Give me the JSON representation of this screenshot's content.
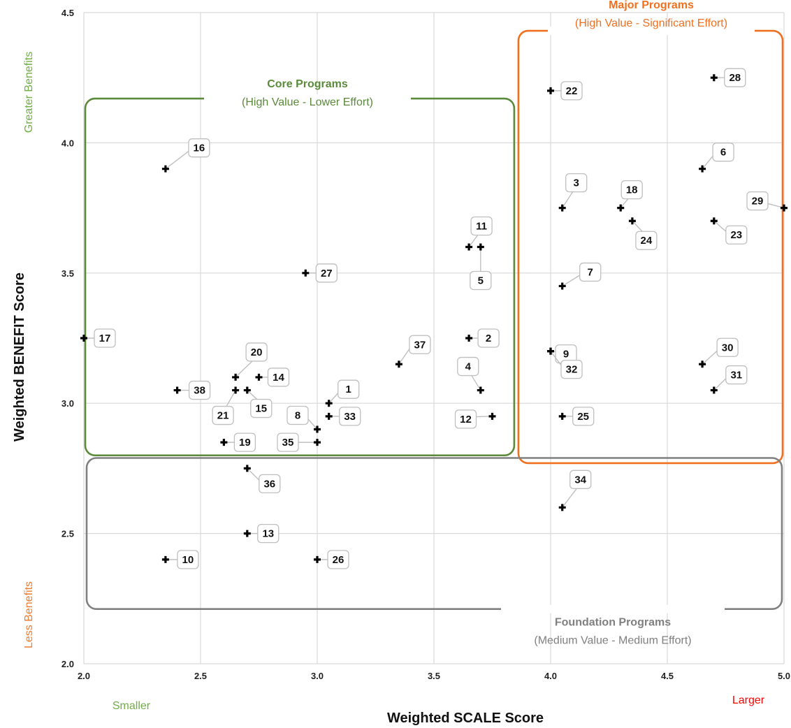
{
  "chart_data": {
    "type": "scatter",
    "xlabel": "Weighted SCALE Score",
    "ylabel": "Weighted BENEFIT Score",
    "xlim": [
      2.0,
      5.0
    ],
    "ylim": [
      2.0,
      4.5
    ],
    "x_ticks": [
      "2.0",
      "2.5",
      "3.0",
      "3.5",
      "4.0",
      "4.5",
      "5.0"
    ],
    "y_ticks": [
      "2.0",
      "2.5",
      "3.0",
      "3.5",
      "4.0",
      "4.5"
    ],
    "grid": true,
    "x_low_label": "Smaller",
    "x_high_label": "Larger",
    "y_high_label": "Greater Benefits",
    "y_low_label": "Less Benefits",
    "colors": {
      "core": "#5a8a3a",
      "major": "#f07020",
      "foundation": "#808080",
      "smaller": "#70ad47",
      "larger": "#ff0000",
      "greater": "#70ad47",
      "less": "#ed7d31",
      "grid": "#d9d9d9"
    },
    "regions": [
      {
        "id": "core",
        "title": "Core Programs",
        "subtitle": "(High Value - Lower Effort)",
        "x": [
          2.0,
          3.85
        ],
        "y": [
          2.8,
          4.17
        ]
      },
      {
        "id": "major",
        "title": "Major Programs",
        "subtitle": "(High Value - Significant Effort)",
        "x": [
          3.85,
          5.0
        ],
        "y": [
          2.77,
          4.43
        ]
      },
      {
        "id": "foundation",
        "title": "Foundation Programs",
        "subtitle": "(Medium Value - Medium Effort)",
        "x": [
          2.0,
          5.0
        ],
        "y": [
          2.21,
          2.79
        ]
      }
    ],
    "points": [
      {
        "label": "1",
        "x": 3.05,
        "y": 3.0
      },
      {
        "label": "2",
        "x": 3.65,
        "y": 3.25
      },
      {
        "label": "3",
        "x": 4.05,
        "y": 3.75
      },
      {
        "label": "4",
        "x": 3.7,
        "y": 3.05
      },
      {
        "label": "5",
        "x": 3.7,
        "y": 3.6
      },
      {
        "label": "6",
        "x": 4.65,
        "y": 3.9
      },
      {
        "label": "7",
        "x": 4.05,
        "y": 3.45
      },
      {
        "label": "8",
        "x": 3.0,
        "y": 2.9
      },
      {
        "label": "9",
        "x": 4.0,
        "y": 3.2
      },
      {
        "label": "10",
        "x": 2.35,
        "y": 2.4
      },
      {
        "label": "11",
        "x": 3.65,
        "y": 3.6
      },
      {
        "label": "12",
        "x": 3.75,
        "y": 2.95
      },
      {
        "label": "13",
        "x": 2.7,
        "y": 2.5
      },
      {
        "label": "14",
        "x": 2.75,
        "y": 3.1
      },
      {
        "label": "15",
        "x": 2.7,
        "y": 3.05
      },
      {
        "label": "16",
        "x": 2.35,
        "y": 3.9
      },
      {
        "label": "17",
        "x": 2.0,
        "y": 3.25
      },
      {
        "label": "18",
        "x": 4.3,
        "y": 3.75
      },
      {
        "label": "19",
        "x": 2.6,
        "y": 2.85
      },
      {
        "label": "20",
        "x": 2.65,
        "y": 3.1
      },
      {
        "label": "21",
        "x": 2.65,
        "y": 3.05
      },
      {
        "label": "22",
        "x": 4.0,
        "y": 4.2
      },
      {
        "label": "23",
        "x": 4.7,
        "y": 3.7
      },
      {
        "label": "24",
        "x": 4.35,
        "y": 3.7
      },
      {
        "label": "25",
        "x": 4.05,
        "y": 2.95
      },
      {
        "label": "26",
        "x": 3.0,
        "y": 2.4
      },
      {
        "label": "27",
        "x": 2.95,
        "y": 3.5
      },
      {
        "label": "28",
        "x": 4.7,
        "y": 4.25
      },
      {
        "label": "29",
        "x": 5.0,
        "y": 3.75
      },
      {
        "label": "30",
        "x": 4.65,
        "y": 3.15
      },
      {
        "label": "31",
        "x": 4.7,
        "y": 3.05
      },
      {
        "label": "32",
        "x": 4.0,
        "y": 3.2
      },
      {
        "label": "33",
        "x": 3.05,
        "y": 2.95
      },
      {
        "label": "34",
        "x": 4.05,
        "y": 2.6
      },
      {
        "label": "35",
        "x": 3.0,
        "y": 2.85
      },
      {
        "label": "36",
        "x": 2.7,
        "y": 2.75
      },
      {
        "label": "37",
        "x": 3.35,
        "y": 3.15
      },
      {
        "label": "38",
        "x": 2.4,
        "y": 3.05
      }
    ]
  }
}
